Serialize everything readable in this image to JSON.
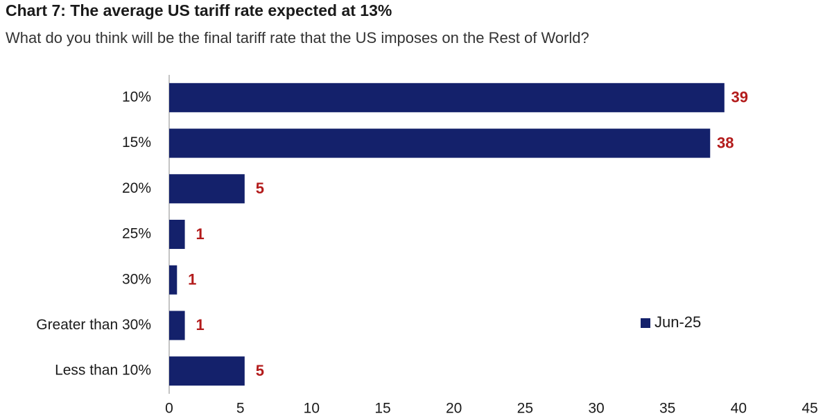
{
  "chart_data": {
    "type": "bar",
    "orientation": "horizontal",
    "title": "Chart 7: The average US tariff rate expected at 13%",
    "subtitle": "What do you think will be the final tariff rate that the US imposes on the Rest of World?",
    "categories": [
      "10%",
      "15%",
      "20%",
      "25%",
      "30%",
      "Greater than 30%",
      "Less than 10%"
    ],
    "series": [
      {
        "name": "Jun-25",
        "color": "#14216b",
        "values": [
          39,
          38,
          5.3,
          1.1,
          0.55,
          1.1,
          5.3
        ],
        "value_labels": [
          "39",
          "38",
          "5",
          "1",
          "1",
          "1",
          "5"
        ]
      }
    ],
    "label_color": "#b31b1b",
    "xlim": [
      0,
      45
    ],
    "xticks": [
      0,
      5,
      10,
      15,
      20,
      25,
      30,
      35,
      40,
      45
    ],
    "grid": false,
    "legend": "lower right"
  }
}
